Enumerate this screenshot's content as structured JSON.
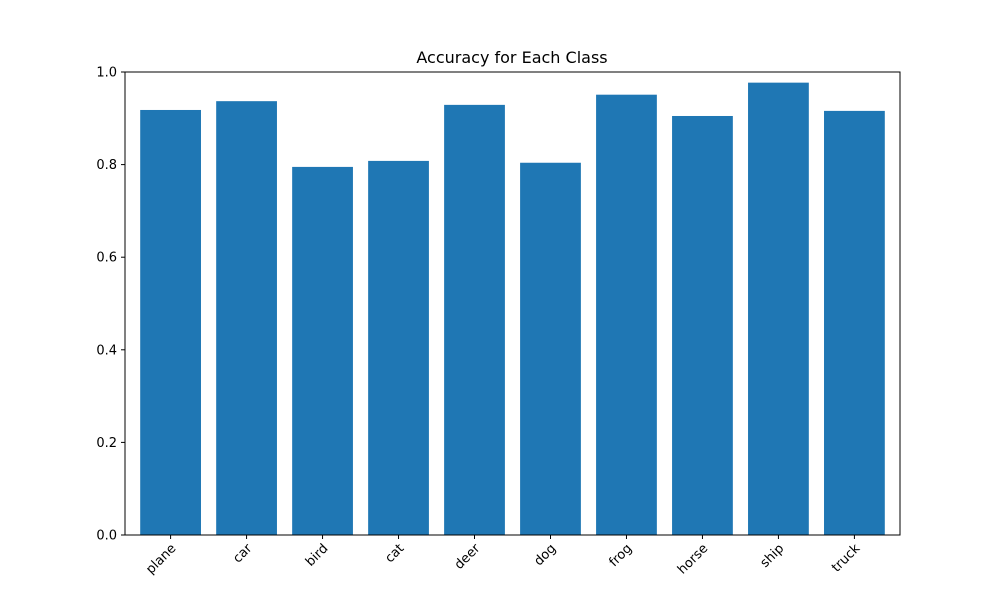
{
  "chart_data": {
    "type": "bar",
    "title": "Accuracy for Each Class",
    "xlabel": "",
    "ylabel": "",
    "categories": [
      "plane",
      "car",
      "bird",
      "cat",
      "deer",
      "dog",
      "frog",
      "horse",
      "ship",
      "truck"
    ],
    "values": [
      0.918,
      0.937,
      0.795,
      0.808,
      0.929,
      0.804,
      0.951,
      0.905,
      0.977,
      0.916
    ],
    "ylim": [
      0,
      1.0
    ],
    "yticks": [
      "0.0",
      "0.2",
      "0.4",
      "0.6",
      "0.8",
      "1.0"
    ],
    "bar_color": "#1f77b4",
    "grid": false,
    "legend": "none",
    "xtick_rotation_deg": 45
  }
}
